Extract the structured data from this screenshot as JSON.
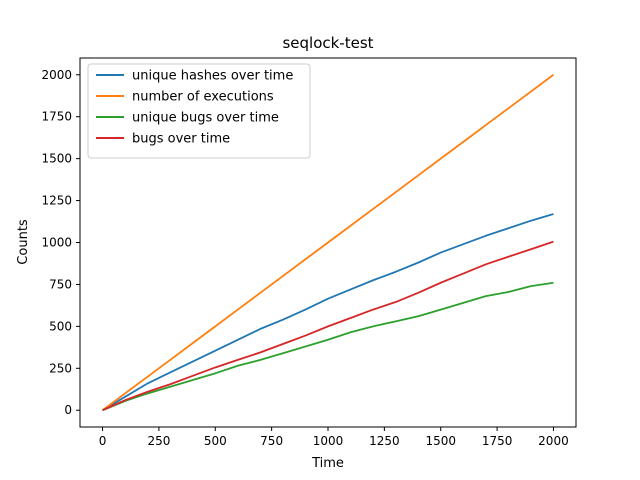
{
  "chart_data": {
    "type": "line",
    "title": "seqlock-test",
    "xlabel": "Time",
    "ylabel": "Counts",
    "xlim": [
      -100,
      2100
    ],
    "ylim": [
      -100,
      2100
    ],
    "xticks": [
      0,
      250,
      500,
      750,
      1000,
      1250,
      1500,
      1750,
      2000
    ],
    "yticks": [
      0,
      250,
      500,
      750,
      1000,
      1250,
      1500,
      1750,
      2000
    ],
    "grid": false,
    "legend_position": "top-left",
    "x": [
      0,
      100,
      200,
      300,
      400,
      500,
      600,
      700,
      800,
      900,
      1000,
      1100,
      1200,
      1300,
      1400,
      1500,
      1600,
      1700,
      1800,
      1900,
      2000
    ],
    "series": [
      {
        "name": "unique hashes over time",
        "color": "#1f77b4",
        "values": [
          0,
          80,
          160,
          225,
          290,
          355,
          420,
          485,
          540,
          600,
          665,
          720,
          775,
          825,
          880,
          940,
          990,
          1040,
          1085,
          1130,
          1170
        ]
      },
      {
        "name": "number of executions",
        "color": "#ff7f0e",
        "values": [
          0,
          100,
          200,
          300,
          400,
          500,
          600,
          700,
          800,
          900,
          1000,
          1100,
          1200,
          1300,
          1400,
          1500,
          1600,
          1700,
          1800,
          1900,
          2000
        ]
      },
      {
        "name": "unique bugs over time",
        "color": "#2ca02c",
        "values": [
          0,
          55,
          100,
          140,
          180,
          220,
          265,
          300,
          340,
          380,
          420,
          465,
          500,
          530,
          560,
          600,
          640,
          680,
          705,
          740,
          760
        ]
      },
      {
        "name": "bugs over time",
        "color": "#d62728",
        "values": [
          0,
          60,
          110,
          155,
          205,
          255,
          300,
          345,
          395,
          445,
          500,
          550,
          600,
          645,
          700,
          760,
          815,
          870,
          915,
          960,
          1005
        ]
      }
    ]
  }
}
